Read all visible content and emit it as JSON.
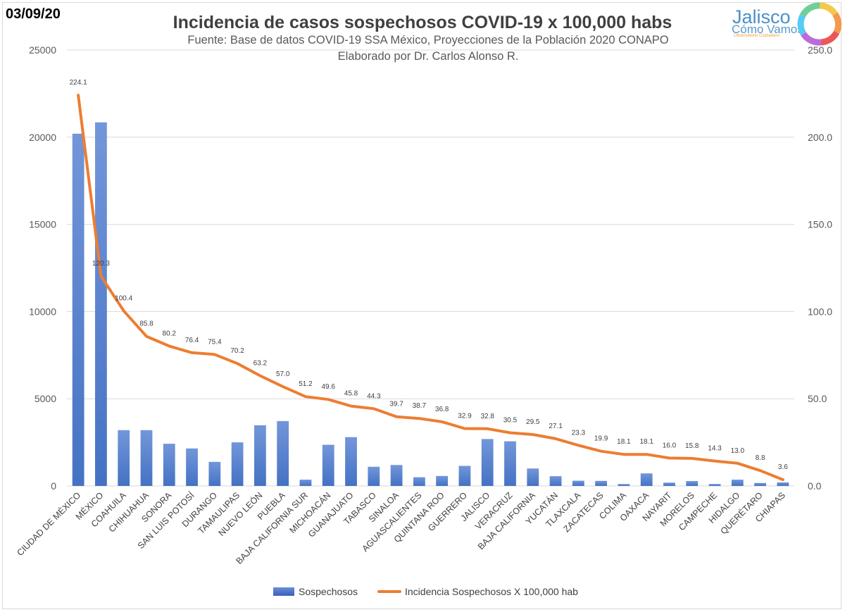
{
  "header": {
    "date": "03/09/20",
    "title": "Incidencia de casos sospechosos COVID-19 x 100,000 habs",
    "subtitle_1": "Fuente: Base de datos COVID-19 SSA México, Proyecciones de la Población 2020 CONAPO",
    "subtitle_2": "Elaborado por Dr. Carlos Alonso R."
  },
  "logo": {
    "name": "Jalisco",
    "sub": "Cómo Vamos",
    "tag": "Observatorio Ciudadano",
    "icon": "color-ring-icon"
  },
  "colors": {
    "bar": "#4472c4",
    "line": "#ed7d31",
    "grid": "#d9d9d9"
  },
  "chart_data": {
    "type": "bar",
    "title": "Incidencia de casos sospechosos COVID-19 x 100,000 habs",
    "categories": [
      "CIUDAD DE MÉXICO",
      "MÉXICO",
      "COAHUILA",
      "CHIHUAHUA",
      "SONORA",
      "SAN LUIS POTOSÍ",
      "DURANGO",
      "TAMAULIPAS",
      "NUEVO LEÓN",
      "PUEBLA",
      "BAJA CALIFORNIA SUR",
      "MICHOACÁN",
      "GUANAJUATO",
      "TABASCO",
      "SINALOA",
      "AGUASCALIENTES",
      "QUINTANA ROO",
      "GUERRERO",
      "JALISCO",
      "VERACRUZ",
      "BAJA CALIFORNIA",
      "YUCATÁN",
      "TLAXCALA",
      "ZACATECAS",
      "COLIMA",
      "OAXACA",
      "NAYARIT",
      "MORELOS",
      "CAMPECHE",
      "HIDALGO",
      "QUERÉTARO",
      "CHIAPAS"
    ],
    "series": [
      {
        "name": "Sospechosos",
        "type": "bar",
        "axis": "left",
        "values": [
          20200,
          20850,
          3200,
          3200,
          2420,
          2150,
          1380,
          2500,
          3480,
          3720,
          360,
          2360,
          2800,
          1100,
          1200,
          500,
          570,
          1150,
          2690,
          2560,
          1000,
          560,
          300,
          290,
          110,
          720,
          190,
          280,
          110,
          360,
          170,
          200
        ]
      },
      {
        "name": "Incidencia Sospechosos X 100,000 hab",
        "type": "line",
        "axis": "right",
        "values": [
          224.1,
          120.3,
          100.4,
          85.8,
          80.2,
          76.4,
          75.4,
          70.2,
          63.2,
          57.0,
          51.2,
          49.6,
          45.8,
          44.3,
          39.7,
          38.7,
          36.8,
          32.9,
          32.8,
          30.5,
          29.5,
          27.1,
          23.3,
          19.9,
          18.1,
          18.1,
          16.0,
          15.8,
          14.3,
          13.0,
          8.8,
          3.6
        ],
        "labels": [
          "224.1",
          "120.3",
          "100.4",
          "85.8",
          "80.2",
          "76.4",
          "75.4",
          "70.2",
          "63.2",
          "57.0",
          "51.2",
          "49.6",
          "45.8",
          "44.3",
          "39.7",
          "38.7",
          "36.8",
          "32.9",
          "32.8",
          "30.5",
          "29.5",
          "27.1",
          "23.3",
          "19.9",
          "18.1",
          "18.1",
          "16.0",
          "15.8",
          "14.3",
          "13.0",
          "8.8",
          "3.6"
        ]
      }
    ],
    "y_left": {
      "min": 0,
      "max": 25000,
      "ticks": [
        "0",
        "5000",
        "10000",
        "15000",
        "20000",
        "25000"
      ]
    },
    "y_right": {
      "min": 0,
      "max": 250,
      "ticks": [
        "0.0",
        "50.0",
        "100.0",
        "150.0",
        "200.0",
        "250.0"
      ]
    },
    "grid": true,
    "legend": "bottom"
  }
}
